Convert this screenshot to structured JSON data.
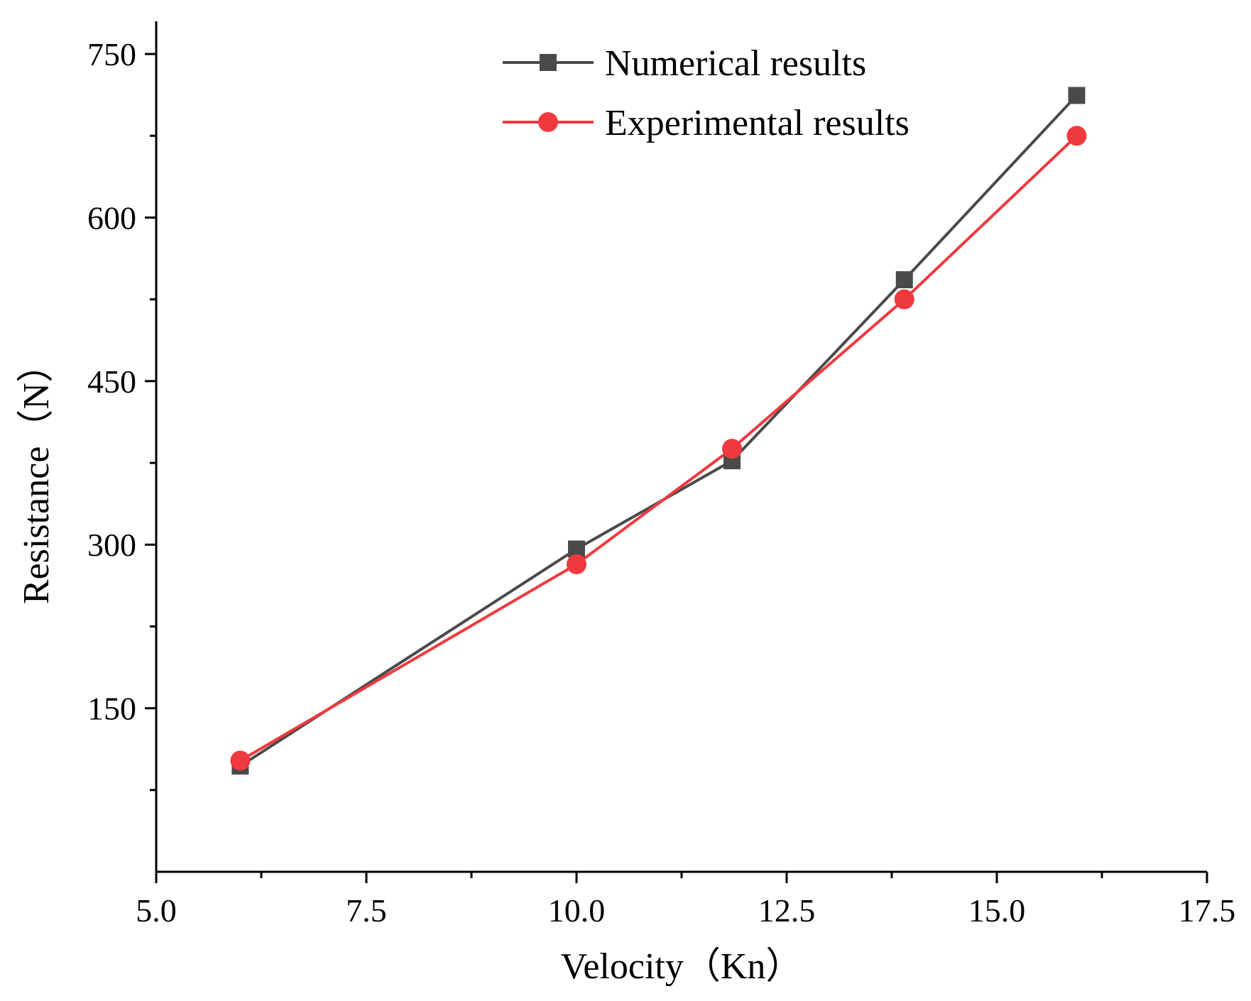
{
  "chart_data": {
    "type": "line",
    "title": "",
    "xlabel": "Velocity（Kn）",
    "ylabel": "Resistance（N）",
    "xlim": [
      5.0,
      17.5
    ],
    "ylim": [
      0,
      780
    ],
    "xticks": [
      "5.0",
      "7.5",
      "10.0",
      "12.5",
      "15.0",
      "17.5"
    ],
    "yticks": [
      "150",
      "300",
      "450",
      "600",
      "750"
    ],
    "legend_position": "top-center",
    "series": [
      {
        "name": "Numerical results",
        "color": "#4a4a4a",
        "marker": "square",
        "x": [
          6.0,
          10.0,
          11.85,
          13.9,
          15.95
        ],
        "y": [
          97,
          296,
          377,
          543,
          712
        ]
      },
      {
        "name": "Experimental results",
        "color": "#f0393e",
        "marker": "circle",
        "x": [
          6.0,
          10.0,
          11.85,
          13.9,
          15.95
        ],
        "y": [
          102,
          282,
          388,
          525,
          675
        ]
      }
    ]
  }
}
